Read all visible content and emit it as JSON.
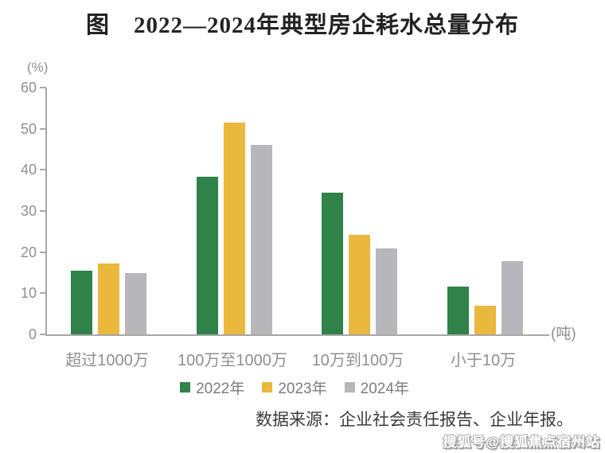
{
  "title": "图　2022—2024年典型房企耗水总量分布",
  "chart_data": {
    "type": "bar",
    "title": "图　2022—2024年典型房企耗水总量分布",
    "unit_y": "(%)",
    "unit_x": "(吨)",
    "categories": [
      "超过1000万",
      "100万至1000万",
      "10万到100万",
      "小于10万"
    ],
    "series": [
      {
        "name": "2022年",
        "color": "#2f8349",
        "values": [
          15.5,
          38.3,
          34.5,
          11.7
        ]
      },
      {
        "name": "2023年",
        "color": "#eab83c",
        "values": [
          17.2,
          51.5,
          24.2,
          7.0
        ]
      },
      {
        "name": "2024年",
        "color": "#b6b6bb",
        "values": [
          15.0,
          46.0,
          21.0,
          17.9
        ]
      }
    ],
    "ylim": [
      0,
      60
    ],
    "yticks": [
      0,
      10,
      20,
      30,
      40,
      50,
      60
    ],
    "grid": false,
    "legend_position": "bottom",
    "axis_color": "#a8a8a8",
    "tick_label_color": "#8f8f8f"
  },
  "source": "数据来源：企业社会责任报告、企业年报。",
  "watermark": "搜狐号@搜狐焦点宿州站"
}
